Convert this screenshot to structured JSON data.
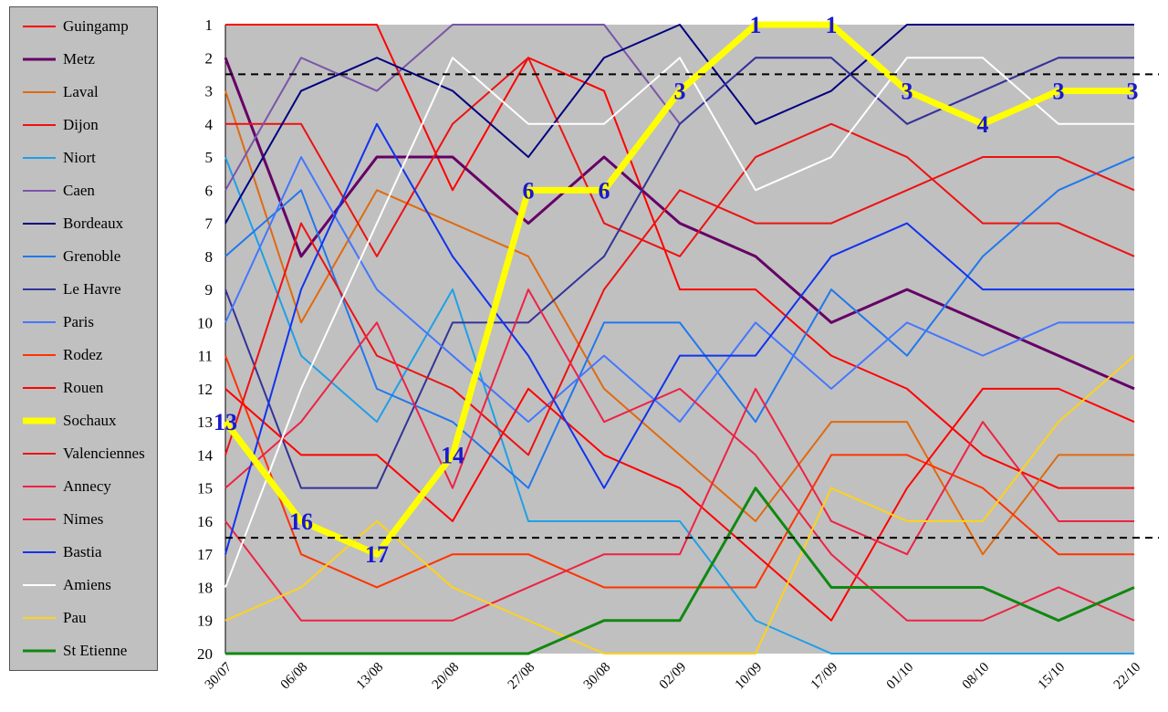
{
  "chart_data": {
    "type": "line",
    "x": [
      "30/07",
      "06/08",
      "13/08",
      "20/08",
      "27/08",
      "30/08",
      "02/09",
      "10/09",
      "17/09",
      "01/10",
      "08/10",
      "15/10",
      "22/10"
    ],
    "ylim": [
      1,
      20
    ],
    "y_inverted": true,
    "y_ticks": [
      1,
      2,
      3,
      4,
      5,
      6,
      7,
      8,
      9,
      10,
      11,
      12,
      13,
      14,
      15,
      16,
      17,
      18,
      19,
      20
    ],
    "grid": false,
    "legend_position": "left",
    "reference_lines": [
      2.5,
      16.5
    ],
    "series": [
      {
        "name": "Guingamp",
        "color": "#ff0000",
        "width": 2,
        "values": [
          1,
          1,
          1,
          6,
          2,
          3,
          9,
          9,
          11,
          12,
          14,
          15,
          15
        ]
      },
      {
        "name": "Metz",
        "color": "#660066",
        "width": 3,
        "values": [
          2,
          8,
          5,
          5,
          7,
          5,
          7,
          8,
          10,
          9,
          10,
          11,
          12
        ]
      },
      {
        "name": "Laval",
        "color": "#e06a10",
        "width": 2,
        "values": [
          3,
          10,
          6,
          7,
          8,
          12,
          14,
          16,
          13,
          13,
          17,
          14,
          14
        ]
      },
      {
        "name": "Dijon",
        "color": "#ee1111",
        "width": 2,
        "values": [
          4,
          4,
          8,
          4,
          2,
          7,
          8,
          5,
          4,
          5,
          7,
          7,
          8
        ]
      },
      {
        "name": "Niort",
        "color": "#1ea0e8",
        "width": 2,
        "values": [
          5,
          11,
          13,
          9,
          16,
          16,
          16,
          19,
          20,
          20,
          20,
          20,
          20
        ]
      },
      {
        "name": "Caen",
        "color": "#7a55a8",
        "width": 2,
        "values": [
          6,
          2,
          3,
          1,
          1,
          1,
          4,
          2,
          2,
          4,
          3,
          2,
          2
        ]
      },
      {
        "name": "Bordeaux",
        "color": "#000080",
        "width": 2,
        "values": [
          7,
          3,
          2,
          3,
          5,
          2,
          1,
          4,
          3,
          1,
          1,
          1,
          1
        ]
      },
      {
        "name": "Grenoble",
        "color": "#2277ee",
        "width": 2,
        "values": [
          8,
          6,
          12,
          13,
          15,
          10,
          10,
          13,
          9,
          11,
          8,
          6,
          5
        ]
      },
      {
        "name": "Le Havre",
        "color": "#333399",
        "width": 2,
        "values": [
          9,
          15,
          15,
          10,
          10,
          8,
          4,
          2,
          2,
          4,
          3,
          2,
          2
        ]
      },
      {
        "name": "Paris",
        "color": "#4477ff",
        "width": 2,
        "values": [
          10,
          5,
          9,
          11,
          13,
          11,
          13,
          10,
          12,
          10,
          11,
          10,
          10
        ]
      },
      {
        "name": "Rodez",
        "color": "#ff3300",
        "width": 2,
        "values": [
          11,
          17,
          18,
          17,
          17,
          18,
          18,
          18,
          14,
          14,
          15,
          17,
          17
        ]
      },
      {
        "name": "Rouen",
        "color": "#ff0000",
        "width": 2,
        "values": [
          12,
          14,
          14,
          16,
          12,
          14,
          15,
          17,
          19,
          15,
          12,
          12,
          13
        ]
      },
      {
        "name": "Sochaux",
        "color": "#ffff00",
        "width": 7,
        "values": [
          13,
          16,
          17,
          14,
          6,
          6,
          3,
          1,
          1,
          3,
          4,
          3,
          3
        ]
      },
      {
        "name": "Valenciennes",
        "color": "#ee1111",
        "width": 2,
        "values": [
          14,
          7,
          11,
          12,
          14,
          9,
          6,
          7,
          7,
          6,
          5,
          5,
          6
        ]
      },
      {
        "name": "Annecy",
        "color": "#ee2244",
        "width": 2,
        "values": [
          15,
          13,
          10,
          15,
          9,
          13,
          12,
          14,
          17,
          19,
          19,
          18,
          19
        ]
      },
      {
        "name": "Nimes",
        "color": "#ee2244",
        "width": 2,
        "values": [
          16,
          19,
          19,
          19,
          18,
          17,
          17,
          12,
          16,
          17,
          13,
          16,
          16
        ]
      },
      {
        "name": "Bastia",
        "color": "#1133ee",
        "width": 2,
        "values": [
          17,
          9,
          4,
          8,
          11,
          15,
          11,
          11,
          8,
          7,
          9,
          9,
          9
        ]
      },
      {
        "name": "Amiens",
        "color": "#ffffff",
        "width": 2,
        "values": [
          18,
          12,
          7,
          2,
          4,
          4,
          2,
          6,
          5,
          2,
          2,
          4,
          4
        ]
      },
      {
        "name": "Pau",
        "color": "#ffd21a",
        "width": 2,
        "values": [
          19,
          18,
          16,
          18,
          19,
          20,
          20,
          20,
          15,
          16,
          16,
          13,
          11
        ]
      },
      {
        "name": "St Etienne",
        "color": "#118811",
        "width": 3,
        "values": [
          20,
          20,
          20,
          20,
          20,
          19,
          19,
          15,
          18,
          18,
          18,
          19,
          18
        ]
      }
    ],
    "annotations": [
      {
        "series": "Sochaux",
        "x": "30/07",
        "y": 13,
        "text": "13"
      },
      {
        "series": "Sochaux",
        "x": "06/08",
        "y": 16,
        "text": "16"
      },
      {
        "series": "Sochaux",
        "x": "13/08",
        "y": 17,
        "text": "17"
      },
      {
        "series": "Sochaux",
        "x": "20/08",
        "y": 14,
        "text": "14"
      },
      {
        "series": "Sochaux",
        "x": "27/08",
        "y": 6,
        "text": "6"
      },
      {
        "series": "Sochaux",
        "x": "30/08",
        "y": 6,
        "text": "6"
      },
      {
        "series": "Sochaux",
        "x": "02/09",
        "y": 3,
        "text": "3"
      },
      {
        "series": "Sochaux",
        "x": "10/09",
        "y": 1,
        "text": "1"
      },
      {
        "series": "Sochaux",
        "x": "17/09",
        "y": 1,
        "text": "1"
      },
      {
        "series": "Sochaux",
        "x": "01/10",
        "y": 3,
        "text": "3"
      },
      {
        "series": "Sochaux",
        "x": "08/10",
        "y": 4,
        "text": "4"
      },
      {
        "series": "Sochaux",
        "x": "15/10",
        "y": 3,
        "text": "3"
      },
      {
        "series": "Sochaux",
        "x": "22/10",
        "y": 3,
        "text": "3"
      }
    ]
  }
}
